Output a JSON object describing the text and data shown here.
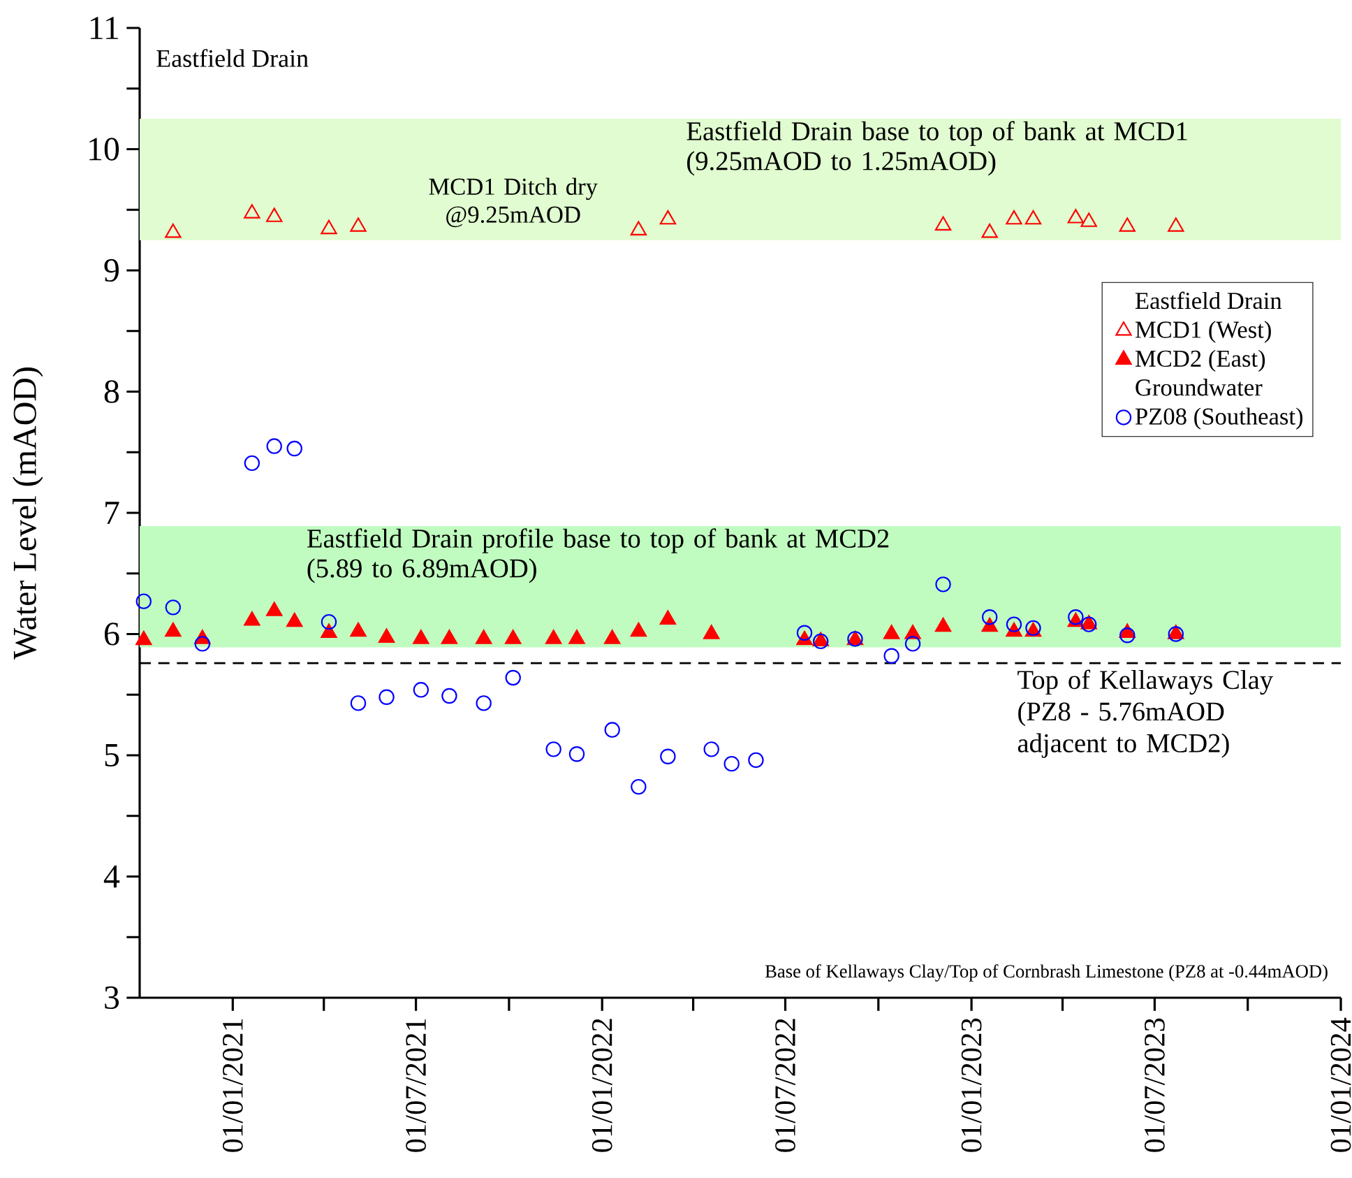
{
  "chart_data": {
    "type": "scatter",
    "title": "Eastfield Drain",
    "ylabel": "Water Level (mAOD)",
    "legend_title": "Eastfield Drain",
    "xlim": [
      "2020-10-01",
      "2024-01-01"
    ],
    "xticks": [
      {
        "value": "2021-01-01",
        "label": "01/01/2021"
      },
      {
        "value": "2021-04-01",
        "label": null
      },
      {
        "value": "2021-07-01",
        "label": "01/07/2021"
      },
      {
        "value": "2021-10-01",
        "label": null
      },
      {
        "value": "2022-01-01",
        "label": "01/01/2022"
      },
      {
        "value": "2022-04-01",
        "label": null
      },
      {
        "value": "2022-07-01",
        "label": "01/07/2022"
      },
      {
        "value": "2022-10-01",
        "label": null
      },
      {
        "value": "2023-01-01",
        "label": "01/01/2023"
      },
      {
        "value": "2023-04-01",
        "label": null
      },
      {
        "value": "2023-07-01",
        "label": "01/07/2023"
      },
      {
        "value": "2023-10-01",
        "label": null
      },
      {
        "value": "2024-01-01",
        "label": "01/01/2024"
      }
    ],
    "ylim": [
      3,
      11
    ],
    "yticks": [
      3,
      {
        "value": 3.5,
        "label": null
      },
      4,
      {
        "value": 4.5,
        "label": null
      },
      5,
      {
        "value": 5.5,
        "label": null
      },
      6,
      {
        "value": 6.5,
        "label": null
      },
      7,
      {
        "value": 7.5,
        "label": null
      },
      8,
      {
        "value": 8.5,
        "label": null
      },
      9,
      {
        "value": 9.5,
        "label": null
      },
      10,
      {
        "value": 10.5,
        "label": null
      },
      11
    ],
    "legend": "top right",
    "series": [
      {
        "name": "MCD1 (West)",
        "color": "#ff0000",
        "marker": "triangle",
        "x": [
          "2020-11-03",
          "2021-01-20",
          "2021-02-11",
          "2021-04-06",
          "2021-05-05",
          "2022-02-06",
          "2022-03-07",
          "2022-12-04",
          "2023-01-19",
          "2023-02-12",
          "2023-03-03",
          "2023-04-14",
          "2023-04-27",
          "2023-06-04",
          "2023-07-22"
        ],
        "values": [
          9.31,
          9.47,
          9.44,
          9.34,
          9.36,
          9.33,
          9.42,
          9.37,
          9.31,
          9.42,
          9.42,
          9.43,
          9.4,
          9.36,
          9.36
        ]
      },
      {
        "name": "MCD2 (East)",
        "color": "#ff0000",
        "marker": "triangle",
        "x": [
          "2020-10-05",
          "2020-11-03",
          "2020-12-02",
          "2021-01-20",
          "2021-02-11",
          "2021-03-03",
          "2021-04-06",
          "2021-05-05",
          "2021-06-02",
          "2021-07-06",
          "2021-08-03",
          "2021-09-06",
          "2021-10-05",
          "2021-11-14",
          "2021-12-07",
          "2022-01-11",
          "2022-02-06",
          "2022-03-07",
          "2022-04-19",
          "2022-07-20",
          "2022-08-05",
          "2022-09-08",
          "2022-10-14",
          "2022-11-04",
          "2022-12-04",
          "2023-01-19",
          "2023-02-12",
          "2023-03-03",
          "2023-04-14",
          "2023-04-27",
          "2023-06-04",
          "2023-07-22"
        ],
        "values": [
          5.95,
          6.02,
          5.96,
          6.11,
          6.19,
          6.1,
          6.01,
          6.02,
          5.97,
          5.96,
          5.96,
          5.96,
          5.96,
          5.96,
          5.96,
          5.96,
          6.02,
          6.12,
          6.0,
          5.95,
          5.94,
          5.95,
          6.0,
          6.0,
          6.06,
          6.06,
          6.02,
          6.02,
          6.1,
          6.08,
          6.01,
          6.0
        ]
      },
      {
        "name": "PZ08 (Southeast)",
        "color": "#0000ff",
        "marker": "circle",
        "x": [
          "2020-10-05",
          "2020-11-03",
          "2020-12-02",
          "2021-01-20",
          "2021-02-11",
          "2021-03-03",
          "2021-04-06",
          "2021-05-05",
          "2021-06-02",
          "2021-07-06",
          "2021-08-03",
          "2021-09-06",
          "2021-10-05",
          "2021-11-14",
          "2021-12-07",
          "2022-01-11",
          "2022-02-06",
          "2022-03-07",
          "2022-04-19",
          "2022-05-09",
          "2022-06-02",
          "2022-07-20",
          "2022-08-05",
          "2022-09-08",
          "2022-10-14",
          "2022-11-04",
          "2022-12-04",
          "2023-01-19",
          "2023-02-12",
          "2023-03-03",
          "2023-04-14",
          "2023-04-27",
          "2023-06-04",
          "2023-07-22"
        ],
        "values": [
          6.27,
          6.22,
          5.92,
          7.41,
          7.55,
          7.53,
          6.1,
          5.43,
          5.48,
          5.54,
          5.49,
          5.43,
          5.64,
          5.05,
          5.01,
          5.21,
          4.74,
          4.99,
          5.05,
          4.93,
          4.96,
          6.01,
          5.94,
          5.96,
          5.82,
          5.92,
          6.41,
          6.14,
          6.08,
          6.05,
          6.14,
          6.08,
          5.99,
          6.0
        ]
      }
    ],
    "bands": [
      {
        "axis": "y",
        "from": 9.25,
        "to": 10.25,
        "label": "Eastfield Drain base to top of bank at MCD1 (9.25mAOD to 1.25mAOD)",
        "color": "#e0fcd0"
      },
      {
        "axis": "y",
        "from": 5.89,
        "to": 6.89,
        "label": "Eastfield Drain profile base to top of bank at MCD2 (5.89 to 6.89mAOD)",
        "color": "#c0fcc0"
      }
    ],
    "ref_lines": [
      {
        "axis": "y",
        "value": 5.76,
        "label": "Top of Kellaways Clay (PZ8 - 5.76mAOD adjacent to MCD2)",
        "color": "#000000",
        "line_style": "dashed"
      }
    ],
    "annotations": [
      "Groundwater",
      "MCD1 Ditch dry @9.25mAOD",
      "Base of Kellaways Clay/Top of Cornbrash Limestone (PZ8 at -0.44mAOD)"
    ]
  }
}
